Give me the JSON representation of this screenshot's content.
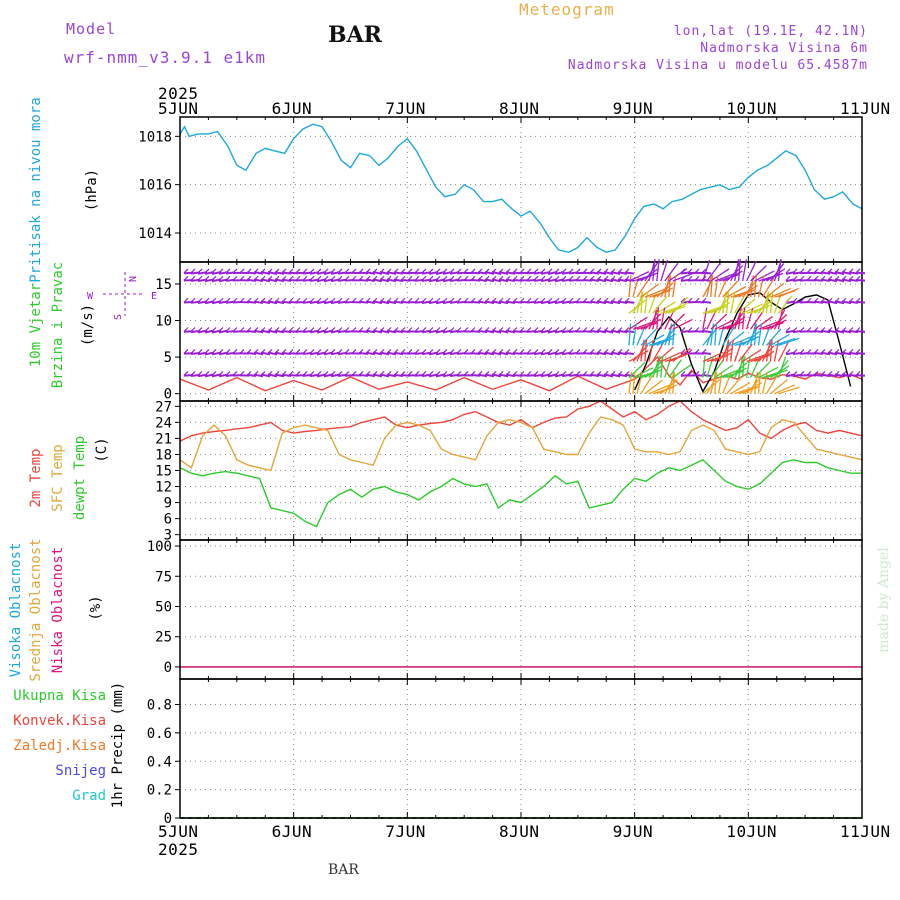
{
  "header": {
    "model_label": "Model",
    "model_name": "wrf-nmm_v3.9.1 e1km",
    "station": "BAR",
    "title": "Meteogram",
    "location": "lon,lat (19.1E, 42.1N)",
    "elevation": "Nadmorska Visina 6m",
    "model_elevation": "Nadmorska Visina u modelu 65.4587m"
  },
  "footer": {
    "station": "BAR",
    "credit": "made by Angel"
  },
  "time_axis": {
    "year": "2025",
    "ticks": [
      "5JUN",
      "6JUN",
      "7JUN",
      "8JUN",
      "9JUN",
      "10JUN",
      "11JUN"
    ]
  },
  "colors": {
    "pressure": "#1ea8e0",
    "temp": "#f0443c",
    "sfc_temp": "#e3a73b",
    "dewpt": "#2ccc2c",
    "wind_speed": "#000000",
    "barbs": "#9a1ed8",
    "high_cloud": "#1ea8e0",
    "mid_cloud": "#e3a73b",
    "low_cloud": "#e0147c",
    "total_precip": "#2ccc2c",
    "conv_precip": "#f0443c",
    "frz_precip": "#f07a28",
    "snow": "#4a4af0",
    "hail": "#1ec8c8"
  },
  "chart_data": [
    {
      "type": "line",
      "panel": "pressure",
      "ylabel": "(hPa)",
      "side_label": "Pritisak na nivou mora",
      "yticks": [
        1014,
        1016,
        1018
      ],
      "ylim": [
        1012.8,
        1018.8
      ],
      "x_days": [
        0,
        0.04,
        0.08,
        0.16,
        0.25,
        0.33,
        0.42,
        0.5,
        0.58,
        0.67,
        0.75,
        0.83,
        0.92,
        1.0,
        1.08,
        1.17,
        1.25,
        1.33,
        1.42,
        1.5,
        1.58,
        1.67,
        1.75,
        1.83,
        1.92,
        2.0,
        2.08,
        2.17,
        2.25,
        2.33,
        2.42,
        2.5,
        2.58,
        2.67,
        2.75,
        2.83,
        2.92,
        3.0,
        3.08,
        3.17,
        3.25,
        3.33,
        3.42,
        3.5,
        3.58,
        3.67,
        3.75,
        3.83,
        3.92,
        4.0,
        4.08,
        4.17,
        4.25,
        4.33,
        4.42,
        4.5,
        4.58,
        4.67,
        4.75,
        4.83,
        4.92,
        5.0,
        5.08,
        5.17,
        5.25,
        5.33,
        5.42,
        5.5,
        5.58,
        5.67,
        5.75,
        5.83,
        5.92,
        6.0
      ],
      "series": [
        {
          "name": "pressure",
          "color": "#1ea8e0",
          "values": [
            1018.1,
            1018.4,
            1018.0,
            1018.1,
            1018.1,
            1018.2,
            1017.6,
            1016.8,
            1016.6,
            1017.3,
            1017.5,
            1017.4,
            1017.3,
            1017.9,
            1018.3,
            1018.5,
            1018.4,
            1017.8,
            1017.0,
            1016.7,
            1017.3,
            1017.2,
            1016.8,
            1017.1,
            1017.6,
            1017.9,
            1017.4,
            1016.6,
            1015.9,
            1015.5,
            1015.6,
            1016.0,
            1015.8,
            1015.3,
            1015.3,
            1015.4,
            1015.0,
            1014.7,
            1014.9,
            1014.4,
            1013.8,
            1013.3,
            1013.2,
            1013.4,
            1013.8,
            1013.4,
            1013.2,
            1013.3,
            1013.9,
            1014.6,
            1015.1,
            1015.2,
            1015.0,
            1015.3,
            1015.4,
            1015.6,
            1015.8,
            1015.9,
            1016.0,
            1015.8,
            1015.9,
            1016.3,
            1016.6,
            1016.8,
            1017.1,
            1017.4,
            1017.2,
            1016.6,
            1015.8,
            1015.4,
            1015.5,
            1015.7,
            1015.2,
            1015.0
          ]
        }
      ]
    },
    {
      "type": "line",
      "panel": "wind",
      "ylabel": "(m/s)",
      "side_label": "10m Vjetar Brzina i Pravac",
      "compass": {
        "n": "N",
        "w": "W",
        "e": "E",
        "s": "S"
      },
      "yticks": [
        0,
        5,
        10,
        15
      ],
      "ylim": [
        -1,
        18
      ],
      "x_days": [
        0,
        0.25,
        0.5,
        0.75,
        1.0,
        1.25,
        1.5,
        1.75,
        2.0,
        2.25,
        2.5,
        2.75,
        3.0,
        3.25,
        3.5,
        3.75,
        4.0,
        4.1,
        4.2,
        4.3,
        4.4,
        4.5,
        4.6,
        4.7,
        4.8,
        4.9,
        5.0,
        5.1,
        5.2,
        5.3,
        5.4,
        5.5,
        5.6,
        5.7,
        5.8,
        5.9,
        6.0
      ],
      "series": [
        {
          "name": "wind speed",
          "color": "#f0443c",
          "values": [
            2.0,
            0.5,
            2.2,
            0.4,
            1.8,
            0.5,
            2.3,
            0.6,
            1.6,
            0.5,
            2.2,
            0.6,
            1.9,
            0.4,
            2.4,
            0.6,
            2.0,
            3.5,
            5.0,
            2.5,
            1.2,
            3.2,
            1.5,
            2.0,
            2.5,
            2.0,
            2.8,
            2.2,
            2.0,
            2.6,
            2.4,
            2.0,
            2.8,
            2.5,
            2.2,
            2.6,
            2.0
          ]
        },
        {
          "name": "wind speed (black)",
          "color": "#000000",
          "values": [
            null,
            null,
            null,
            null,
            null,
            null,
            null,
            null,
            null,
            null,
            null,
            null,
            null,
            null,
            null,
            null,
            0.5,
            4.0,
            8.5,
            10.5,
            9.0,
            4.0,
            0.3,
            3.0,
            7.5,
            11.0,
            13.5,
            13.8,
            12.5,
            11.5,
            12.3,
            13.2,
            13.5,
            12.8,
            7.0,
            1.0,
            null
          ]
        }
      ]
    },
    {
      "type": "line",
      "panel": "temperature",
      "ylabel": "(C)",
      "side_labels": [
        "2m Temp",
        "SFC Temp",
        "dewpt Temp"
      ],
      "yticks": [
        3,
        6,
        9,
        12,
        15,
        18,
        21,
        24,
        27
      ],
      "ylim": [
        2,
        28
      ],
      "x_days": [
        0,
        0.1,
        0.2,
        0.3,
        0.4,
        0.5,
        0.6,
        0.7,
        0.8,
        0.9,
        1.0,
        1.1,
        1.2,
        1.3,
        1.4,
        1.5,
        1.6,
        1.7,
        1.8,
        1.9,
        2.0,
        2.1,
        2.2,
        2.3,
        2.4,
        2.5,
        2.6,
        2.7,
        2.8,
        2.9,
        3.0,
        3.1,
        3.2,
        3.3,
        3.4,
        3.5,
        3.6,
        3.7,
        3.8,
        3.9,
        4.0,
        4.1,
        4.2,
        4.3,
        4.4,
        4.5,
        4.6,
        4.7,
        4.8,
        4.9,
        5.0,
        5.1,
        5.2,
        5.3,
        5.4,
        5.5,
        5.6,
        5.7,
        5.8,
        5.9,
        6.0
      ],
      "series": [
        {
          "name": "2m Temp",
          "color": "#f0443c",
          "values": [
            20.5,
            21.5,
            22.0,
            22.3,
            22.5,
            22.8,
            23.0,
            23.5,
            24.0,
            22.5,
            22.0,
            22.3,
            22.5,
            22.8,
            23.0,
            23.2,
            24.0,
            24.5,
            25.0,
            23.5,
            23.0,
            23.5,
            23.8,
            24.0,
            24.5,
            25.5,
            26.0,
            25.0,
            24.0,
            23.5,
            24.5,
            23.0,
            24.0,
            24.8,
            25.0,
            26.5,
            27.0,
            28.0,
            26.5,
            25.0,
            26.0,
            24.5,
            25.5,
            27.0,
            28.0,
            26.0,
            24.5,
            23.5,
            22.5,
            23.0,
            24.5,
            22.0,
            21.0,
            22.5,
            23.5,
            24.0,
            22.5,
            22.0,
            22.5,
            22.0,
            21.5
          ]
        },
        {
          "name": "SFC Temp",
          "color": "#e3a73b",
          "values": [
            17.0,
            15.5,
            21.5,
            23.5,
            21.5,
            17.0,
            16.0,
            15.5,
            15.0,
            22.0,
            23.0,
            23.5,
            23.0,
            22.5,
            18.0,
            17.0,
            16.5,
            16.0,
            21.0,
            23.5,
            24.0,
            23.5,
            22.5,
            19.0,
            18.0,
            17.5,
            17.0,
            21.5,
            24.0,
            24.5,
            24.0,
            23.0,
            19.0,
            18.5,
            18.0,
            18.0,
            22.0,
            25.0,
            24.5,
            23.5,
            19.0,
            18.5,
            18.5,
            18.0,
            18.5,
            22.5,
            23.5,
            22.5,
            19.0,
            18.5,
            18.0,
            18.5,
            23.0,
            24.5,
            24.0,
            21.5,
            19.0,
            18.5,
            18.0,
            17.5,
            17.0
          ]
        },
        {
          "name": "dewpt Temp",
          "color": "#2ccc2c",
          "values": [
            15.5,
            14.5,
            14.0,
            14.5,
            14.8,
            14.5,
            14.0,
            13.5,
            8.0,
            7.5,
            7.0,
            5.5,
            4.5,
            9.0,
            10.5,
            11.5,
            10.0,
            11.5,
            12.0,
            11.0,
            10.5,
            9.5,
            11.0,
            12.0,
            13.5,
            12.5,
            12.0,
            12.5,
            8.0,
            9.5,
            9.0,
            10.5,
            12.0,
            14.0,
            12.5,
            13.0,
            8.0,
            8.5,
            9.0,
            11.5,
            13.5,
            13.0,
            14.5,
            15.5,
            15.0,
            16.0,
            17.0,
            15.0,
            13.0,
            12.0,
            11.5,
            12.5,
            14.5,
            16.5,
            17.0,
            16.5,
            16.5,
            15.5,
            15.0,
            14.5,
            14.5
          ]
        }
      ]
    },
    {
      "type": "line",
      "panel": "cloud",
      "ylabel": "(%)",
      "side_labels": [
        "Visoka Oblacnost",
        "Srednja Oblacnost",
        "Niska Oblacnost"
      ],
      "yticks": [
        0,
        25,
        50,
        75,
        100
      ],
      "ylim": [
        -10,
        105
      ],
      "x_days": [
        0,
        6
      ],
      "series": [
        {
          "name": "Visoka Oblacnost",
          "color": "#1ea8e0",
          "values": [
            0,
            0
          ]
        },
        {
          "name": "Srednja Oblacnost",
          "color": "#e3a73b",
          "values": [
            0,
            0
          ]
        },
        {
          "name": "Niska Oblacnost",
          "color": "#e0147c",
          "values": [
            0,
            0
          ]
        }
      ]
    },
    {
      "type": "line",
      "panel": "precip",
      "ylabel": "1hr Precip (mm)",
      "side_labels": [
        "Ukupna Kisa",
        "Konvek.Kisa",
        "Zaledj.Kisa",
        "Snijeg",
        "Grad"
      ],
      "yticks": [
        0,
        0.2,
        0.4,
        0.6,
        0.8
      ],
      "ytick_labels": [
        "0",
        "0.2",
        "0.4",
        "0.6",
        "0.8"
      ],
      "ylim": [
        0,
        0.98
      ],
      "x_days": [
        0,
        6
      ],
      "series": [
        {
          "name": "Ukupna Kisa",
          "color": "#2ccc2c",
          "values": [
            0,
            0
          ]
        }
      ]
    }
  ]
}
